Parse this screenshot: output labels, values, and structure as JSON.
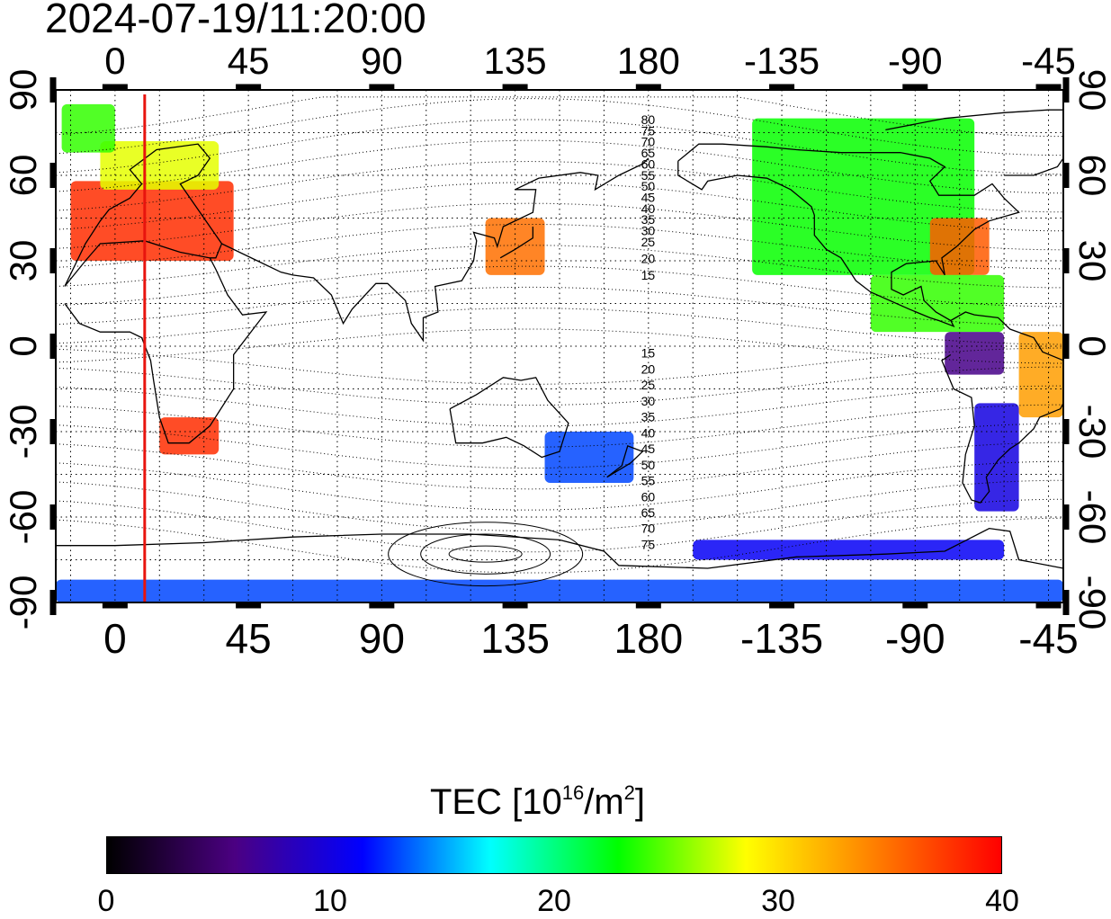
{
  "map": {
    "timestamp": "2024-07-19/11:20:00",
    "lon_labels_top": [
      "0",
      "45",
      "90",
      "135",
      "180",
      "-135",
      "-90",
      "-45"
    ],
    "lon_labels_bottom": [
      "0",
      "45",
      "90",
      "135",
      "180",
      "-135",
      "-90",
      "-45"
    ],
    "lat_labels_left": [
      "90",
      "60",
      "30",
      "0",
      "-30",
      "-60",
      "-90"
    ],
    "lat_labels_right": [
      "90",
      "60",
      "30",
      "0",
      "-30",
      "-60",
      "-90"
    ],
    "lon_range": [
      -20,
      320
    ],
    "lat_range": [
      -90,
      90
    ],
    "grid_step_deg": 15,
    "grid": "dotted",
    "projection": "equirectangular",
    "terminator_marker_lon": 10,
    "marker_color": "#e8140e",
    "contour_labels_north": [
      "80",
      "75",
      "70",
      "65",
      "60",
      "55",
      "50",
      "45",
      "40",
      "35",
      "30",
      "25",
      "20",
      "15"
    ],
    "contour_labels_south": [
      "15",
      "20",
      "25",
      "30",
      "35",
      "40",
      "45",
      "50",
      "55",
      "60",
      "65",
      "70",
      "75"
    ]
  },
  "colorbar": {
    "title_prefix": "TEC  [10",
    "title_exp1": "16",
    "title_mid": "/m",
    "title_exp2": "2",
    "title_suffix": "]",
    "min": 0,
    "max": 40,
    "tick_labels": [
      "0",
      "10",
      "20",
      "30",
      "40"
    ],
    "gradient_colors": [
      "#000000",
      "#4b0082",
      "#0000ff",
      "#00ffff",
      "#00ff00",
      "#ffff00",
      "#ff8000",
      "#ff0000"
    ]
  },
  "tec_regions": [
    {
      "name": "europe",
      "lon": [
        -15,
        40
      ],
      "lat": [
        30,
        58
      ],
      "tec": 38
    },
    {
      "name": "scandinavia",
      "lon": [
        -5,
        35
      ],
      "lat": [
        55,
        72
      ],
      "tec": 28
    },
    {
      "name": "greenland-east",
      "lon": [
        -18,
        0
      ],
      "lat": [
        68,
        85
      ],
      "tec": 24
    },
    {
      "name": "south-africa",
      "lon": [
        15,
        35
      ],
      "lat": [
        -38,
        -25
      ],
      "tec": 38
    },
    {
      "name": "japan",
      "lon": [
        125,
        145
      ],
      "lat": [
        25,
        45
      ],
      "tec": 35
    },
    {
      "name": "australia-east",
      "lon": [
        145,
        175
      ],
      "lat": [
        -48,
        -30
      ],
      "tec": 13
    },
    {
      "name": "north-america",
      "lon": [
        215,
        290
      ],
      "lat": [
        25,
        80
      ],
      "tec": 23
    },
    {
      "name": "us-east",
      "lon": [
        275,
        295
      ],
      "lat": [
        25,
        45
      ],
      "tec": 36
    },
    {
      "name": "central-america",
      "lon": [
        255,
        300
      ],
      "lat": [
        5,
        25
      ],
      "tec": 24
    },
    {
      "name": "south-america-north",
      "lon": [
        280,
        300
      ],
      "lat": [
        -10,
        5
      ],
      "tec": 6
    },
    {
      "name": "brazil",
      "lon": [
        305,
        320
      ],
      "lat": [
        -25,
        5
      ],
      "tec": 33
    },
    {
      "name": "south-america-south",
      "lon": [
        290,
        305
      ],
      "lat": [
        -58,
        -20
      ],
      "tec": 10
    },
    {
      "name": "antarctica",
      "lon": [
        -20,
        320
      ],
      "lat": [
        -90,
        -82
      ],
      "tec": 13
    },
    {
      "name": "antarctic-peninsula",
      "lon": [
        195,
        300
      ],
      "lat": [
        -75,
        -68
      ],
      "tec": 11
    }
  ]
}
